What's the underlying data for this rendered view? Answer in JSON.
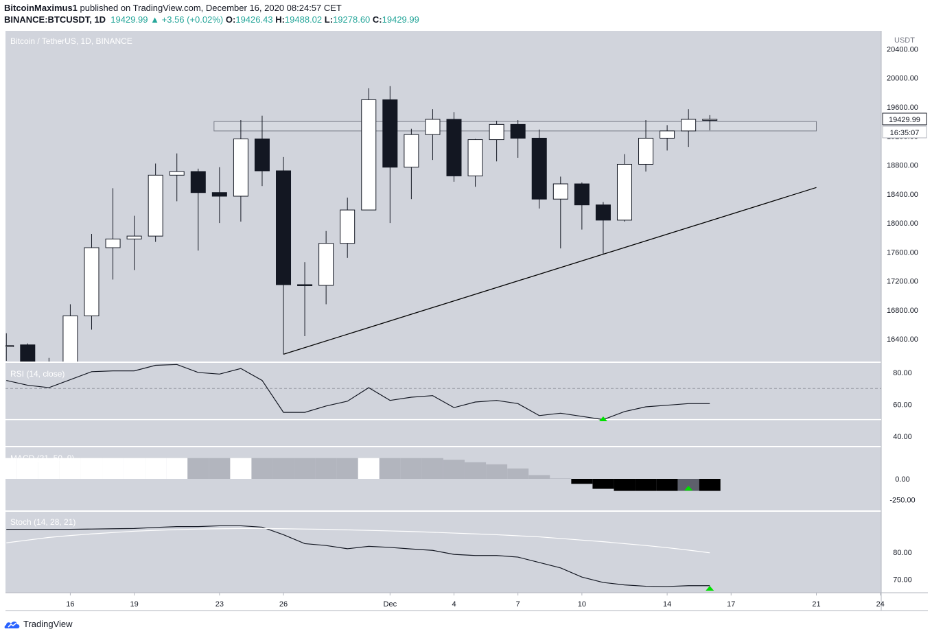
{
  "header": {
    "author": "BitcoinMaximus1",
    "published": "published on TradingView.com, December 16, 2020 08:24:57 CET",
    "symbol": "BINANCE:BTCUSDT, 1D",
    "last": "19429.99",
    "change": "▲ +3.56 (+0.02%)",
    "o_label": "O:",
    "o_value": "19426.43",
    "h_label": "H:",
    "h_value": "19488.02",
    "l_label": "L:",
    "l_value": "19278.60",
    "c_label": "C:",
    "c_value": "19429.99"
  },
  "footer": {
    "brand": "TradingView",
    "logo_icon": "tradingview-logo-icon"
  },
  "colors": {
    "panel_bg": "#d1d4dc",
    "up": "#ffffff",
    "down": "#131722",
    "text": "#131722"
  },
  "chart_data": [
    {
      "type": "candlestick",
      "title": "Bitcoin / TetherUS, 1D, BINANCE",
      "currency": "USDT",
      "ylim": [
        16090,
        20650
      ],
      "yticks": [
        16400,
        16800,
        17200,
        17600,
        18000,
        18400,
        18800,
        19200,
        19600,
        20000,
        20400
      ],
      "ytick_labels": [
        "16400.00",
        "16800.00",
        "17200.00",
        "17600.00",
        "18000.00",
        "18400.00",
        "18800.00",
        "19200.00",
        "19600.00",
        "20000.00",
        "20400.00"
      ],
      "last_price_label": "19429.99",
      "countdown_label": "16:35:07",
      "x_tick_labels": [
        "16",
        "19",
        "23",
        "26",
        "Dec",
        "4",
        "7",
        "10",
        "14",
        "17",
        "21",
        "24"
      ],
      "candles": [
        {
          "date": "2020-11-13",
          "open": 16300,
          "high": 16480,
          "low": 16100,
          "close": 16310
        },
        {
          "date": "2020-11-14",
          "open": 16320,
          "high": 16340,
          "low": 16060,
          "close": 16070
        },
        {
          "date": "2020-11-15",
          "open": 16070,
          "high": 16140,
          "low": 15880,
          "close": 16060
        },
        {
          "date": "2020-11-16",
          "open": 16060,
          "high": 16880,
          "low": 15900,
          "close": 16720
        },
        {
          "date": "2020-11-17",
          "open": 16720,
          "high": 17850,
          "low": 16530,
          "close": 17660
        },
        {
          "date": "2020-11-18",
          "open": 17660,
          "high": 18480,
          "low": 17220,
          "close": 17780
        },
        {
          "date": "2020-11-19",
          "open": 17780,
          "high": 18100,
          "low": 17350,
          "close": 17820
        },
        {
          "date": "2020-11-20",
          "open": 17820,
          "high": 18820,
          "low": 17740,
          "close": 18660
        },
        {
          "date": "2020-11-21",
          "open": 18660,
          "high": 18960,
          "low": 18300,
          "close": 18710
        },
        {
          "date": "2020-11-22",
          "open": 18710,
          "high": 18750,
          "low": 17620,
          "close": 18420
        },
        {
          "date": "2020-11-23",
          "open": 18420,
          "high": 18770,
          "low": 18000,
          "close": 18370
        },
        {
          "date": "2020-11-24",
          "open": 18370,
          "high": 19420,
          "low": 18020,
          "close": 19160
        },
        {
          "date": "2020-11-25",
          "open": 19160,
          "high": 19480,
          "low": 18510,
          "close": 18720
        },
        {
          "date": "2020-11-26",
          "open": 18720,
          "high": 18910,
          "low": 16190,
          "close": 17150
        },
        {
          "date": "2020-11-27",
          "open": 17150,
          "high": 17460,
          "low": 16440,
          "close": 17140
        },
        {
          "date": "2020-11-28",
          "open": 17140,
          "high": 17890,
          "low": 16880,
          "close": 17720
        },
        {
          "date": "2020-11-29",
          "open": 17720,
          "high": 18350,
          "low": 17520,
          "close": 18180
        },
        {
          "date": "2020-11-30",
          "open": 18180,
          "high": 19860,
          "low": 18180,
          "close": 19700
        },
        {
          "date": "2020-12-01",
          "open": 19700,
          "high": 19890,
          "low": 18000,
          "close": 18770
        },
        {
          "date": "2020-12-02",
          "open": 18770,
          "high": 19300,
          "low": 18330,
          "close": 19220
        },
        {
          "date": "2020-12-03",
          "open": 19220,
          "high": 19570,
          "low": 18870,
          "close": 19430
        },
        {
          "date": "2020-12-04",
          "open": 19430,
          "high": 19530,
          "low": 18570,
          "close": 18650
        },
        {
          "date": "2020-12-05",
          "open": 18650,
          "high": 19160,
          "low": 18500,
          "close": 19150
        },
        {
          "date": "2020-12-06",
          "open": 19150,
          "high": 19410,
          "low": 18850,
          "close": 19360
        },
        {
          "date": "2020-12-07",
          "open": 19360,
          "high": 19420,
          "low": 18900,
          "close": 19170
        },
        {
          "date": "2020-12-08",
          "open": 19170,
          "high": 19290,
          "low": 18200,
          "close": 18330
        },
        {
          "date": "2020-12-09",
          "open": 18330,
          "high": 18640,
          "low": 17650,
          "close": 18540
        },
        {
          "date": "2020-12-10",
          "open": 18540,
          "high": 18560,
          "low": 17910,
          "close": 18250
        },
        {
          "date": "2020-12-11",
          "open": 18250,
          "high": 18290,
          "low": 17570,
          "close": 18040
        },
        {
          "date": "2020-12-12",
          "open": 18040,
          "high": 18950,
          "low": 18020,
          "close": 18810
        },
        {
          "date": "2020-12-13",
          "open": 18810,
          "high": 19420,
          "low": 18710,
          "close": 19170
        },
        {
          "date": "2020-12-14",
          "open": 19170,
          "high": 19350,
          "low": 19000,
          "close": 19270
        },
        {
          "date": "2020-12-15",
          "open": 19270,
          "high": 19570,
          "low": 19050,
          "close": 19430
        },
        {
          "date": "2020-12-16",
          "open": 19426.43,
          "high": 19488.02,
          "low": 19278.6,
          "close": 19429.99
        }
      ],
      "resistance_zone": {
        "from": "2020-11-23",
        "to": "2020-12-21",
        "low": 19270,
        "high": 19400
      },
      "ascending_trendline": {
        "start": {
          "date": "2020-11-26",
          "price": 16190
        },
        "end": {
          "date": "2020-12-21",
          "price": 18490
        }
      },
      "x_range": [
        "2020-11-12",
        "2020-12-28"
      ]
    },
    {
      "type": "line",
      "title": "RSI (14, close)",
      "ylim": [
        34,
        86
      ],
      "yticks": [
        40,
        60,
        80
      ],
      "ytick_labels": [
        "40.00",
        "60.00",
        "80.00"
      ],
      "levels": [
        70,
        30
      ],
      "signal_level": 50.5,
      "bullish_marker_date": "2020-12-11",
      "values": [
        75,
        72,
        70.5,
        75.5,
        80.5,
        81,
        81,
        84.5,
        85,
        80,
        79,
        82.5,
        75,
        55,
        55,
        59,
        62,
        70.5,
        62.5,
        64.5,
        65.5,
        58,
        61.5,
        62.5,
        60.5,
        53,
        54.5,
        52.5,
        50.5,
        55.5,
        58.5,
        59.5,
        60.5,
        60.5
      ]
    },
    {
      "type": "bar",
      "title": "MACD (21, 50, 9)",
      "ylim": [
        -380,
        380
      ],
      "yticks": [
        0,
        -250
      ],
      "ytick_labels": [
        "0.00",
        "-250.00"
      ],
      "bullish_marker_date": "2020-12-15",
      "values": [
        250,
        250,
        250,
        250,
        250,
        250,
        250,
        250,
        250,
        250,
        250,
        250,
        250,
        250,
        250,
        250,
        250,
        250,
        250,
        250,
        250,
        230,
        200,
        175,
        125,
        45,
        5,
        -60,
        -120,
        -145,
        -145,
        -145,
        -145,
        -145
      ],
      "bar_colors": [
        "#ffffff",
        "#ffffff",
        "#ffffff",
        "#ffffff",
        "#ffffff",
        "#ffffff",
        "#ffffff",
        "#ffffff",
        "#ffffff",
        "#b2b5be",
        "#b2b5be",
        "#ffffff",
        "#b2b5be",
        "#b2b5be",
        "#b2b5be",
        "#b2b5be",
        "#b2b5be",
        "#ffffff",
        "#b2b5be",
        "#b2b5be",
        "#b2b5be",
        "#b2b5be",
        "#b2b5be",
        "#b2b5be",
        "#b2b5be",
        "#b2b5be",
        "#b2b5be",
        "#000000",
        "#000000",
        "#000000",
        "#000000",
        "#000000",
        "#5d606b",
        "#000000"
      ]
    },
    {
      "type": "line",
      "title": "Stoch (14, 28, 21)",
      "ylim": [
        65,
        95
      ],
      "yticks": [
        70,
        80
      ],
      "ytick_labels": [
        "70.00",
        "80.00"
      ],
      "bullish_marker_date": "2020-12-16",
      "series": [
        {
          "values": [
            88.5,
            88.5,
            88.5,
            88.5,
            88.6,
            88.7,
            88.8,
            89.2,
            89.5,
            89.5,
            89.8,
            89.8,
            89.3,
            86.5,
            83.2,
            82.5,
            81.3,
            82.2,
            81.8,
            81.2,
            80.7,
            79.2,
            78.8,
            78.8,
            78.2,
            76.2,
            74.2,
            70.8,
            68.8,
            67.9,
            67.4,
            67.3,
            67.6,
            67.6
          ]
        },
        {
          "values": [
            83.5,
            84.5,
            85.5,
            86.2,
            86.8,
            87.3,
            87.8,
            88.1,
            88.4,
            88.6,
            88.7,
            88.8,
            88.8,
            88.7,
            88.6,
            88.5,
            88.3,
            88.1,
            87.9,
            87.7,
            87.4,
            87.1,
            86.8,
            86.5,
            86.1,
            85.7,
            85.1,
            84.5,
            83.9,
            83.2,
            82.5,
            81.7,
            80.8,
            79.8
          ]
        }
      ]
    }
  ]
}
